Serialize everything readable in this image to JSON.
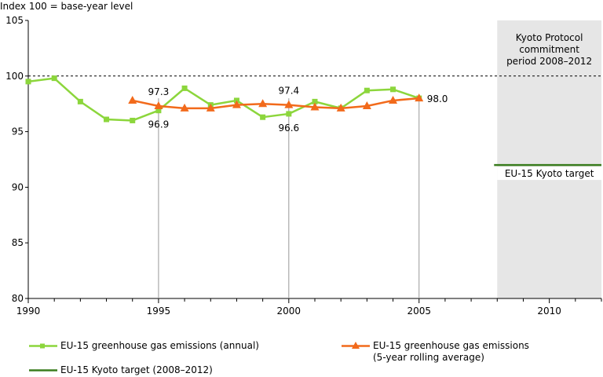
{
  "chart_data": {
    "type": "line",
    "ylabel": "Index 100 = base-year level",
    "xlim": [
      1990,
      2012
    ],
    "ylim": [
      80,
      105
    ],
    "x_ticks": [
      1990,
      1995,
      2000,
      2005,
      2010
    ],
    "y_ticks": [
      80,
      85,
      90,
      95,
      100,
      105
    ],
    "reference_line": 100,
    "commitment_period": {
      "start": 2008,
      "end": 2012,
      "label_lines": [
        "Kyoto Protocol",
        "commitment",
        "period 2008–2012"
      ],
      "fill_color": "#e6e6e6"
    },
    "target": {
      "value": 92,
      "label": "EU-15 Kyoto target",
      "color": "#3a7d1e"
    },
    "series": [
      {
        "name": "EU-15 greenhouse gas emissions (annual)",
        "color": "#8cd63c",
        "marker": "square",
        "x": [
          1990,
          1991,
          1992,
          1993,
          1994,
          1995,
          1996,
          1997,
          1998,
          1999,
          2000,
          2001,
          2002,
          2003,
          2004,
          2005
        ],
        "y": [
          99.5,
          99.8,
          97.7,
          96.1,
          96.0,
          96.9,
          98.9,
          97.4,
          97.8,
          96.3,
          96.6,
          97.7,
          97.1,
          98.7,
          98.8,
          98.0
        ]
      },
      {
        "name": "EU-15 greenhouse gas emissions (5-year rolling average)",
        "color": "#f26a1b",
        "marker": "triangle",
        "x": [
          1994,
          1995,
          1996,
          1997,
          1998,
          1999,
          2000,
          2001,
          2002,
          2003,
          2004,
          2005
        ],
        "y": [
          97.8,
          97.3,
          97.1,
          97.1,
          97.4,
          97.5,
          97.4,
          97.2,
          97.1,
          97.3,
          97.8,
          98.0
        ]
      }
    ],
    "annotations": [
      {
        "x": 1995,
        "y": 97.3,
        "text": "97.3",
        "pos": "above"
      },
      {
        "x": 1995,
        "y": 96.9,
        "text": "96.9",
        "pos": "below"
      },
      {
        "x": 2000,
        "y": 97.4,
        "text": "97.4",
        "pos": "above"
      },
      {
        "x": 2000,
        "y": 96.6,
        "text": "96.6",
        "pos": "below"
      },
      {
        "x": 2005,
        "y": 98.0,
        "text": "98.0",
        "pos": "right"
      }
    ],
    "droplines": [
      1995,
      2000,
      2005
    ],
    "legend": {
      "annual": "EU-15 greenhouse gas emissions (annual)",
      "rolling": "EU-15 greenhouse gas emissions\n(5-year rolling average)",
      "target": "EU-15 Kyoto target (2008–2012)"
    }
  }
}
